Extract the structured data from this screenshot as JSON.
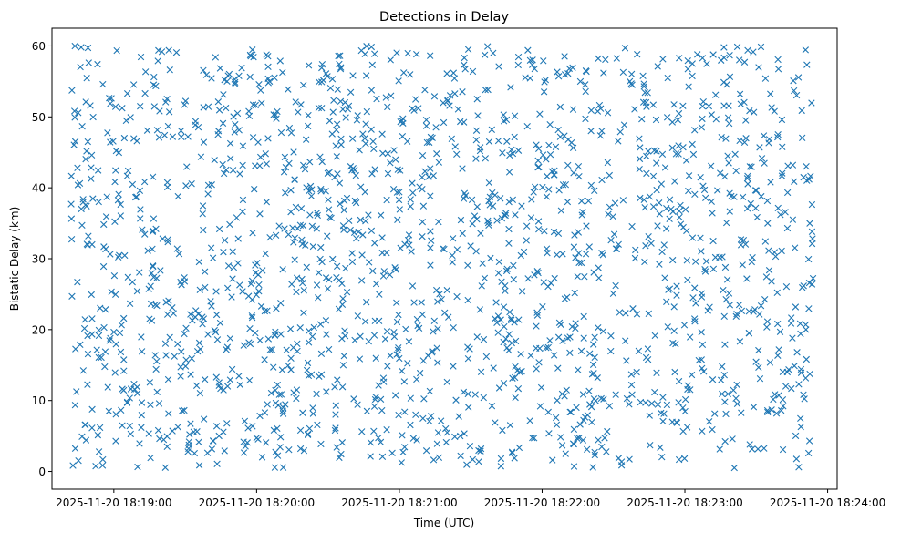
{
  "chart_data": {
    "type": "scatter",
    "title": "Detections in Delay",
    "xlabel": "Time (UTC)",
    "ylabel": "Bistatic Delay (km)",
    "marker": "x",
    "color": "#1f77b4",
    "grid": false,
    "xlim_seconds": [
      -26,
      304
    ],
    "ylim": [
      -2.5,
      62.5
    ],
    "x_ticks": [
      {
        "seconds": 0,
        "label": "2025-11-20 18:19:00"
      },
      {
        "seconds": 60,
        "label": "2025-11-20 18:20:00"
      },
      {
        "seconds": 120,
        "label": "2025-11-20 18:21:00"
      },
      {
        "seconds": 180,
        "label": "2025-11-20 18:22:00"
      },
      {
        "seconds": 240,
        "label": "2025-11-20 18:23:00"
      },
      {
        "seconds": 300,
        "label": "2025-11-20 18:24:00"
      }
    ],
    "y_ticks": [
      0,
      10,
      20,
      30,
      40,
      50,
      60
    ],
    "y_tick_labels": [
      "0",
      "10",
      "20",
      "30",
      "40",
      "50",
      "60"
    ],
    "series": [
      {
        "name": "detections",
        "time_start": "2025-11-20 18:18:42",
        "time_end": "2025-11-20 18:23:54",
        "x_seconds_range": [
          -18,
          294
        ],
        "delay_km_range": [
          0.5,
          60
        ],
        "point_count": 1800,
        "random_seed": 20251120
      }
    ]
  }
}
